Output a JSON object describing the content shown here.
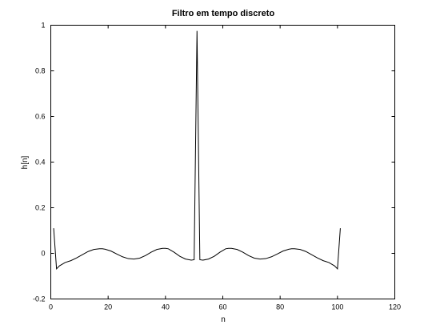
{
  "chart_data": {
    "type": "line",
    "title": "Filtro em tempo discreto",
    "xlabel": "n",
    "ylabel": "h[n]",
    "xlim": [
      0,
      120
    ],
    "ylim": [
      -0.2,
      1
    ],
    "xticks": [
      0,
      20,
      40,
      60,
      80,
      100,
      120
    ],
    "yticks": [
      -0.2,
      0,
      0.2,
      0.4,
      0.6,
      0.8,
      1
    ],
    "grid": false,
    "legend": "none",
    "colors": {
      "line": "#000000",
      "frame": "#000000",
      "background": "#ffffff"
    },
    "series": [
      {
        "x": [
          1,
          2,
          3,
          5,
          7,
          9,
          11,
          13,
          15,
          17,
          18,
          19,
          21,
          23,
          25,
          27,
          29,
          31,
          33,
          35,
          37,
          39,
          40,
          41,
          43,
          45,
          47,
          49,
          50,
          51,
          52,
          53,
          55,
          57,
          59,
          61,
          62,
          63,
          65,
          67,
          69,
          71,
          73,
          75,
          77,
          79,
          81,
          83,
          84,
          85,
          87,
          89,
          91,
          93,
          95,
          97,
          99,
          100,
          101
        ],
        "y": [
          0.11,
          -0.068,
          -0.055,
          -0.04,
          -0.032,
          -0.02,
          -0.006,
          0.008,
          0.017,
          0.02,
          0.02,
          0.018,
          0.01,
          -0.003,
          -0.015,
          -0.023,
          -0.025,
          -0.021,
          -0.01,
          0.005,
          0.017,
          0.022,
          0.022,
          0.02,
          0.005,
          -0.013,
          -0.025,
          -0.03,
          -0.028,
          0.975,
          -0.028,
          -0.03,
          -0.025,
          -0.013,
          0.005,
          0.02,
          0.022,
          0.022,
          0.017,
          0.005,
          -0.01,
          -0.021,
          -0.025,
          -0.023,
          -0.015,
          -0.003,
          0.01,
          0.018,
          0.02,
          0.02,
          0.017,
          0.008,
          -0.006,
          -0.02,
          -0.032,
          -0.04,
          -0.055,
          -0.068,
          0.11
        ]
      }
    ]
  }
}
